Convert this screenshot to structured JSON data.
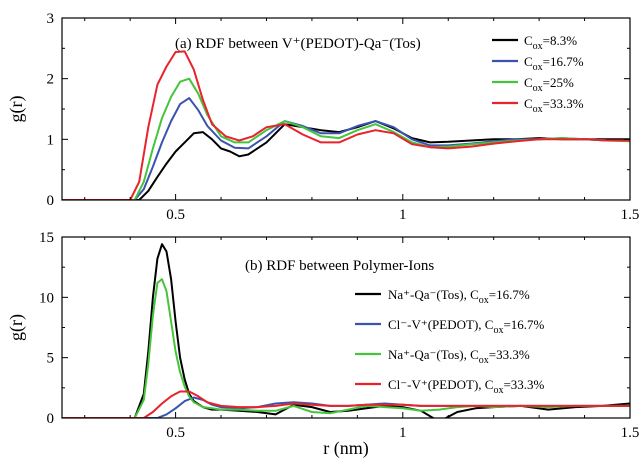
{
  "chart_data": [
    {
      "type": "line",
      "title": "(a) RDF between V⁺(PEDOT)-Qa⁻(Tos)",
      "xlabel": "",
      "ylabel": "g(r)",
      "xlim": [
        0.25,
        1.5
      ],
      "ylim": [
        0,
        3
      ],
      "xticks": [
        0.5,
        1,
        1.5
      ],
      "xtick_labels": [
        "0.5",
        "1",
        "1.5"
      ],
      "yticks": [
        0,
        1,
        2,
        3
      ],
      "ytick_labels": [
        "0",
        "1",
        "2",
        "3"
      ],
      "legend_position": "top-right",
      "series": [
        {
          "name": "C_ox=8.3%",
          "legend_base": "C",
          "legend_sub": "ox",
          "legend_tail": "=8.3%",
          "color": "#000000",
          "x": [
            0.25,
            0.42,
            0.44,
            0.46,
            0.48,
            0.5,
            0.52,
            0.54,
            0.56,
            0.58,
            0.6,
            0.62,
            0.64,
            0.66,
            0.7,
            0.74,
            0.78,
            0.82,
            0.86,
            0.9,
            0.94,
            0.98,
            1.02,
            1.06,
            1.1,
            1.15,
            1.2,
            1.25,
            1.3,
            1.35,
            1.4,
            1.45,
            1.5
          ],
          "y": [
            0,
            0,
            0.15,
            0.38,
            0.6,
            0.8,
            0.95,
            1.1,
            1.12,
            1.0,
            0.85,
            0.8,
            0.72,
            0.75,
            0.95,
            1.25,
            1.2,
            1.15,
            1.12,
            1.2,
            1.3,
            1.18,
            1.02,
            0.95,
            0.96,
            0.98,
            1.0,
            1.0,
            1.02,
            1.0,
            1.0,
            1.0,
            1.0
          ]
        },
        {
          "name": "C_ox=16.7%",
          "legend_base": "C",
          "legend_sub": "ox",
          "legend_tail": "=16.7%",
          "color": "#3a53b0",
          "x": [
            0.25,
            0.41,
            0.43,
            0.45,
            0.47,
            0.49,
            0.51,
            0.53,
            0.55,
            0.57,
            0.6,
            0.63,
            0.66,
            0.7,
            0.74,
            0.78,
            0.82,
            0.86,
            0.9,
            0.94,
            0.98,
            1.02,
            1.06,
            1.1,
            1.15,
            1.2,
            1.25,
            1.3,
            1.35,
            1.4,
            1.45,
            1.5
          ],
          "y": [
            0,
            0,
            0.18,
            0.55,
            0.95,
            1.3,
            1.58,
            1.68,
            1.48,
            1.22,
            0.98,
            0.86,
            0.85,
            1.05,
            1.3,
            1.22,
            1.1,
            1.1,
            1.22,
            1.3,
            1.2,
            1.0,
            0.9,
            0.9,
            0.93,
            0.97,
            1.0,
            1.0,
            1.02,
            1.0,
            0.98,
            0.98
          ]
        },
        {
          "name": "C_ox=25%",
          "legend_base": "C",
          "legend_sub": "ox",
          "legend_tail": "=25%",
          "color": "#46c43b",
          "x": [
            0.25,
            0.41,
            0.43,
            0.45,
            0.47,
            0.49,
            0.51,
            0.53,
            0.55,
            0.57,
            0.6,
            0.63,
            0.66,
            0.7,
            0.74,
            0.78,
            0.82,
            0.86,
            0.9,
            0.94,
            0.98,
            1.02,
            1.06,
            1.1,
            1.15,
            1.2,
            1.25,
            1.3,
            1.35,
            1.4,
            1.45,
            1.5
          ],
          "y": [
            0,
            0,
            0.3,
            0.85,
            1.35,
            1.7,
            1.95,
            2.0,
            1.75,
            1.4,
            1.05,
            0.95,
            0.95,
            1.15,
            1.3,
            1.2,
            1.05,
            1.02,
            1.15,
            1.25,
            1.12,
            0.95,
            0.87,
            0.88,
            0.92,
            0.95,
            0.98,
            1.0,
            1.02,
            1.0,
            0.98,
            0.97
          ]
        },
        {
          "name": "C_ox=33.3%",
          "legend_base": "C",
          "legend_sub": "ox",
          "legend_tail": "=33.3%",
          "color": "#e8232b",
          "x": [
            0.25,
            0.4,
            0.42,
            0.44,
            0.46,
            0.48,
            0.5,
            0.52,
            0.54,
            0.56,
            0.58,
            0.61,
            0.64,
            0.67,
            0.7,
            0.74,
            0.78,
            0.82,
            0.86,
            0.9,
            0.94,
            0.98,
            1.02,
            1.06,
            1.1,
            1.15,
            1.2,
            1.25,
            1.3,
            1.35,
            1.4,
            1.45,
            1.5
          ],
          "y": [
            0,
            0,
            0.3,
            1.2,
            1.9,
            2.2,
            2.44,
            2.45,
            2.15,
            1.65,
            1.25,
            1.05,
            0.98,
            1.05,
            1.2,
            1.25,
            1.08,
            0.95,
            0.95,
            1.08,
            1.15,
            1.1,
            0.92,
            0.87,
            0.85,
            0.88,
            0.93,
            0.97,
            1.0,
            1.0,
            1.0,
            0.98,
            0.98
          ]
        }
      ]
    },
    {
      "type": "line",
      "title": "(b) RDF between Polymer-Ions",
      "xlabel": "r (nm)",
      "ylabel": "g(r)",
      "xlim": [
        0.25,
        1.5
      ],
      "ylim": [
        0,
        15
      ],
      "xticks": [
        0.5,
        1,
        1.5
      ],
      "xtick_labels": [
        "0.5",
        "1",
        "1.5"
      ],
      "yticks": [
        0,
        5,
        10,
        15
      ],
      "ytick_labels": [
        "0",
        "5",
        "10",
        "15"
      ],
      "legend_position": "right",
      "series": [
        {
          "name": "Na⁺-Qa⁻(Tos), C_ox=16.7%",
          "legend_base": "Na⁺-Qa⁻(Tos), C",
          "legend_sub": "ox",
          "legend_tail": "=16.7%",
          "color": "#000000",
          "x": [
            0.25,
            0.41,
            0.43,
            0.44,
            0.45,
            0.46,
            0.47,
            0.48,
            0.49,
            0.5,
            0.51,
            0.52,
            0.53,
            0.54,
            0.56,
            0.58,
            0.6,
            0.64,
            0.68,
            0.72,
            0.76,
            0.8,
            0.84,
            0.88,
            0.92,
            0.96,
            1.0,
            1.04,
            1.08,
            1.12,
            1.16,
            1.2,
            1.26,
            1.32,
            1.38,
            1.44,
            1.5
          ],
          "y": [
            0,
            0,
            2.0,
            5.5,
            10.0,
            13.2,
            14.4,
            13.8,
            11.5,
            8.0,
            5.0,
            3.2,
            2.0,
            1.4,
            0.9,
            0.7,
            0.7,
            0.6,
            0.5,
            0.3,
            1.1,
            0.9,
            0.5,
            0.6,
            0.8,
            1.0,
            0.9,
            0.6,
            -0.3,
            0.5,
            0.8,
            0.9,
            1.0,
            0.7,
            0.9,
            1.0,
            1.2
          ]
        },
        {
          "name": "Cl⁻-V⁺(PEDOT), C_ox=16.7%",
          "legend_base": "Cl⁻-V⁺(PEDOT), C",
          "legend_sub": "ox",
          "legend_tail": "=16.7%",
          "color": "#3a53b0",
          "x": [
            0.25,
            0.46,
            0.48,
            0.5,
            0.52,
            0.54,
            0.56,
            0.58,
            0.6,
            0.64,
            0.68,
            0.72,
            0.76,
            0.8,
            0.84,
            0.88,
            0.92,
            0.96,
            1.0,
            1.04,
            1.08,
            1.12,
            1.16,
            1.2,
            1.26,
            1.32,
            1.38,
            1.44,
            1.5
          ],
          "y": [
            0,
            0,
            0.3,
            0.8,
            1.4,
            1.7,
            1.5,
            1.1,
            0.9,
            0.8,
            0.9,
            1.2,
            1.3,
            1.2,
            1.0,
            1.0,
            1.1,
            1.2,
            1.1,
            1.0,
            1.0,
            1.0,
            1.0,
            1.0,
            1.0,
            1.0,
            1.0,
            1.0,
            1.0
          ]
        },
        {
          "name": "Na⁺-Qa⁻(Tos), C_ox=33.3%",
          "legend_base": "Na⁺-Qa⁻(Tos), C",
          "legend_sub": "ox",
          "legend_tail": "=33.3%",
          "color": "#46c43b",
          "x": [
            0.25,
            0.41,
            0.43,
            0.44,
            0.45,
            0.46,
            0.47,
            0.48,
            0.49,
            0.5,
            0.51,
            0.52,
            0.53,
            0.54,
            0.56,
            0.58,
            0.6,
            0.64,
            0.68,
            0.72,
            0.76,
            0.8,
            0.84,
            0.88,
            0.92,
            0.96,
            1.0,
            1.04,
            1.08,
            1.12,
            1.16,
            1.2,
            1.26,
            1.32,
            1.38,
            1.44,
            1.5
          ],
          "y": [
            0,
            0,
            1.5,
            4.5,
            8.5,
            11.2,
            11.5,
            10.5,
            8.0,
            5.5,
            3.8,
            2.6,
            1.8,
            1.3,
            0.9,
            0.8,
            0.7,
            0.7,
            0.6,
            0.6,
            1.0,
            0.5,
            0.4,
            0.7,
            1.0,
            0.9,
            0.8,
            0.6,
            0.7,
            0.9,
            1.0,
            0.9,
            1.0,
            0.9,
            1.0,
            1.0,
            1.0
          ]
        },
        {
          "name": "Cl⁻-V⁺(PEDOT), C_ox=33.3%",
          "legend_base": "Cl⁻-V⁺(PEDOT), C",
          "legend_sub": "ox",
          "legend_tail": "=33.3%",
          "color": "#e8232b",
          "x": [
            0.25,
            0.43,
            0.45,
            0.47,
            0.49,
            0.51,
            0.53,
            0.55,
            0.57,
            0.6,
            0.64,
            0.68,
            0.72,
            0.76,
            0.8,
            0.84,
            0.88,
            0.92,
            0.96,
            1.0,
            1.04,
            1.08,
            1.12,
            1.16,
            1.2,
            1.26,
            1.32,
            1.38,
            1.44,
            1.5
          ],
          "y": [
            0,
            0,
            0.5,
            1.2,
            1.8,
            2.2,
            2.2,
            1.8,
            1.3,
            1.0,
            0.9,
            0.9,
            1.0,
            1.2,
            1.1,
            1.0,
            1.0,
            1.1,
            1.1,
            1.1,
            1.0,
            1.0,
            1.0,
            1.0,
            1.0,
            1.0,
            1.0,
            1.0,
            1.0,
            1.0
          ]
        }
      ]
    }
  ]
}
